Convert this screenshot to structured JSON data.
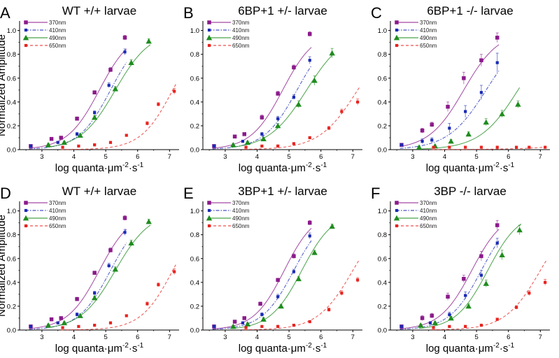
{
  "figure": {
    "axis_labels": {
      "y": "Normalized Amplitude",
      "x_prefix": "log quanta·μm",
      "x_exp1": "-2",
      "x_mid": "·s",
      "x_exp2": "-1"
    }
  },
  "chart_data": [
    {
      "type": "scatter",
      "letter": "A",
      "title": "WT +/+ larvae",
      "xlim": [
        2.3,
        7.3
      ],
      "ylim": [
        0,
        1.08
      ],
      "xticks": [
        3,
        4,
        5,
        6,
        7
      ],
      "yticks": [
        0.0,
        0.2,
        0.4,
        0.6,
        0.8,
        1.0
      ],
      "grid": false,
      "legend": "top-left",
      "series": [
        {
          "name": "370nm",
          "color": "#8b1a8b",
          "marker": "square",
          "line": "solid",
          "x": [
            2.65,
            3.3,
            3.6,
            4.1,
            4.65,
            5.15,
            5.6
          ],
          "y": [
            0.03,
            0.09,
            0.1,
            0.26,
            0.48,
            0.67,
            0.94
          ],
          "err": [
            0.01,
            0.01,
            0.01,
            0.015,
            0.015,
            0.02,
            0.02
          ],
          "fit_mid": 4.8,
          "fit_slope": 0.5
        },
        {
          "name": "410nm",
          "color": "#1a2ab5",
          "marker": "square-small",
          "line": "dashdot",
          "x": [
            2.65,
            3.5,
            4.1,
            4.65,
            5.1,
            5.6
          ],
          "y": [
            0.03,
            0.06,
            0.13,
            0.31,
            0.54,
            0.82
          ],
          "err": [
            0.01,
            0.01,
            0.015,
            0.015,
            0.02,
            0.025
          ],
          "fit_mid": 5.15,
          "fit_slope": 0.5
        },
        {
          "name": "490nm",
          "color": "#1e8c1e",
          "marker": "triangle",
          "line": "solid",
          "x": [
            3.2,
            3.7,
            4.2,
            4.65,
            5.3,
            5.8,
            6.35
          ],
          "y": [
            0.04,
            0.06,
            0.12,
            0.27,
            0.51,
            0.73,
            0.91
          ],
          "err": [
            0.01,
            0.01,
            0.015,
            0.015,
            0.02,
            0.025,
            0.02
          ],
          "fit_mid": 5.3,
          "fit_slope": 0.55
        },
        {
          "name": "650nm",
          "color": "#e8231f",
          "marker": "square-small",
          "line": "dashed",
          "x": [
            3.65,
            4.15,
            4.65,
            5.15,
            5.65,
            6.3,
            6.65,
            7.15
          ],
          "y": [
            0.02,
            0.03,
            0.04,
            0.06,
            0.12,
            0.22,
            0.38,
            0.49
          ],
          "err": [
            0.005,
            0.005,
            0.01,
            0.01,
            0.01,
            0.015,
            0.015,
            0.025
          ],
          "fit_mid": 7.1,
          "fit_slope": 0.5
        }
      ]
    },
    {
      "type": "scatter",
      "letter": "B",
      "title": "6BP+1 +/- larvae",
      "xlim": [
        2.3,
        7.3
      ],
      "ylim": [
        0,
        1.08
      ],
      "xticks": [
        3,
        4,
        5,
        6,
        7
      ],
      "yticks": [
        0.0,
        0.2,
        0.4,
        0.6,
        0.8,
        1.0
      ],
      "grid": false,
      "legend": "top-left",
      "series": [
        {
          "name": "370nm",
          "color": "#8b1a8b",
          "marker": "square",
          "line": "solid",
          "x": [
            2.65,
            3.3,
            3.6,
            4.15,
            4.65,
            5.15,
            5.65
          ],
          "y": [
            0.03,
            0.11,
            0.13,
            0.27,
            0.47,
            0.69,
            0.97
          ],
          "err": [
            0.01,
            0.01,
            0.01,
            0.02,
            0.02,
            0.02,
            0.02
          ],
          "fit_mid": 4.8,
          "fit_slope": 0.5
        },
        {
          "name": "410nm",
          "color": "#1a2ab5",
          "marker": "square-small",
          "line": "dashdot",
          "x": [
            2.65,
            3.55,
            4.15,
            4.65,
            5.15,
            5.65
          ],
          "y": [
            0.03,
            0.07,
            0.13,
            0.26,
            0.44,
            0.75
          ],
          "err": [
            0.01,
            0.01,
            0.015,
            0.02,
            0.02,
            0.03
          ],
          "fit_mid": 5.25,
          "fit_slope": 0.52
        },
        {
          "name": "490nm",
          "color": "#1e8c1e",
          "marker": "triangle",
          "line": "solid",
          "x": [
            3.25,
            3.7,
            4.2,
            4.65,
            5.3,
            5.8,
            6.35
          ],
          "y": [
            0.04,
            0.06,
            0.09,
            0.2,
            0.38,
            0.58,
            0.81
          ],
          "err": [
            0.01,
            0.01,
            0.015,
            0.02,
            0.03,
            0.04,
            0.04
          ],
          "fit_mid": 5.55,
          "fit_slope": 0.6
        },
        {
          "name": "650nm",
          "color": "#e8231f",
          "marker": "square-small",
          "line": "dashed",
          "x": [
            3.65,
            4.15,
            4.65,
            5.15,
            5.65,
            6.25,
            6.65,
            7.15
          ],
          "y": [
            0.02,
            0.03,
            0.03,
            0.05,
            0.1,
            0.18,
            0.32,
            0.4
          ],
          "err": [
            0.005,
            0.005,
            0.01,
            0.01,
            0.01,
            0.015,
            0.02,
            0.025
          ],
          "fit_mid": 7.15,
          "fit_slope": 0.6
        }
      ]
    },
    {
      "type": "scatter",
      "letter": "C",
      "title": "6BP+1 -/- larvae",
      "xlim": [
        2.3,
        7.3
      ],
      "ylim": [
        0,
        1.08
      ],
      "xticks": [
        3,
        4,
        5,
        6,
        7
      ],
      "yticks": [
        0.0,
        0.2,
        0.4,
        0.6,
        0.8,
        1.0
      ],
      "grid": false,
      "legend": "top-left",
      "series": [
        {
          "name": "370nm",
          "color": "#8b1a8b",
          "marker": "square",
          "line": "solid",
          "x": [
            2.65,
            3.3,
            3.6,
            4.1,
            4.6,
            5.15,
            5.65
          ],
          "y": [
            0.04,
            0.16,
            0.21,
            0.36,
            0.6,
            0.75,
            0.94
          ],
          "err": [
            0.01,
            0.02,
            0.02,
            0.04,
            0.05,
            0.05,
            0.04
          ],
          "fit_mid": 4.6,
          "fit_slope": 0.55
        },
        {
          "name": "410nm",
          "color": "#1a2ab5",
          "marker": "square-small",
          "line": "dashdot",
          "x": [
            2.65,
            3.3,
            3.6,
            4.15,
            4.65,
            5.15,
            5.65
          ],
          "y": [
            0.04,
            0.07,
            0.08,
            0.18,
            0.32,
            0.48,
            0.73
          ],
          "err": [
            0.01,
            0.02,
            0.02,
            0.04,
            0.05,
            0.06,
            0.08
          ],
          "fit_mid": 5.3,
          "fit_slope": 0.6
        },
        {
          "name": "490nm",
          "color": "#1e8c1e",
          "marker": "triangle",
          "line": "solid",
          "x": [
            3.2,
            3.7,
            4.2,
            4.75,
            5.3,
            5.8,
            6.3
          ],
          "y": [
            0.02,
            0.03,
            0.07,
            0.13,
            0.23,
            0.3,
            0.38
          ],
          "err": [
            0.01,
            0.01,
            0.015,
            0.02,
            0.03,
            0.03,
            0.03
          ],
          "fit_mid": 6.3,
          "fit_slope": 0.6
        },
        {
          "name": "650nm",
          "color": "#e8231f",
          "marker": "square-small",
          "line": "dashed",
          "x": [
            3.65,
            4.15,
            4.65,
            5.15,
            5.65,
            6.25,
            6.65,
            7.15
          ],
          "y": [
            0.02,
            0.02,
            0.02,
            0.02,
            0.02,
            0.02,
            0.02,
            0.02
          ],
          "err": [
            0.005,
            0.005,
            0.005,
            0.005,
            0.005,
            0.005,
            0.005,
            0.005
          ],
          "fit_mid": 11.0,
          "fit_slope": 1.0
        }
      ]
    },
    {
      "type": "scatter",
      "letter": "D",
      "title": "WT +/+ larvae",
      "xlim": [
        2.3,
        7.3
      ],
      "ylim": [
        0,
        1.08
      ],
      "xticks": [
        3,
        4,
        5,
        6,
        7
      ],
      "yticks": [
        0.0,
        0.2,
        0.4,
        0.6,
        0.8,
        1.0
      ],
      "grid": false,
      "legend": "top-left",
      "series": [
        {
          "name": "370nm",
          "color": "#8b1a8b",
          "marker": "square",
          "line": "solid",
          "x": [
            2.65,
            3.3,
            3.6,
            4.1,
            4.65,
            5.15,
            5.6
          ],
          "y": [
            0.03,
            0.09,
            0.1,
            0.26,
            0.48,
            0.67,
            0.94
          ],
          "err": [
            0.01,
            0.01,
            0.01,
            0.015,
            0.015,
            0.02,
            0.02
          ],
          "fit_mid": 4.8,
          "fit_slope": 0.5
        },
        {
          "name": "410nm",
          "color": "#1a2ab5",
          "marker": "square-small",
          "line": "dashdot",
          "x": [
            2.65,
            3.5,
            4.1,
            4.65,
            5.1,
            5.6
          ],
          "y": [
            0.03,
            0.06,
            0.13,
            0.31,
            0.54,
            0.82
          ],
          "err": [
            0.01,
            0.01,
            0.015,
            0.015,
            0.02,
            0.025
          ],
          "fit_mid": 5.15,
          "fit_slope": 0.5
        },
        {
          "name": "490nm",
          "color": "#1e8c1e",
          "marker": "triangle",
          "line": "solid",
          "x": [
            3.2,
            3.7,
            4.2,
            4.65,
            5.3,
            5.8,
            6.35
          ],
          "y": [
            0.04,
            0.06,
            0.12,
            0.27,
            0.51,
            0.73,
            0.91
          ],
          "err": [
            0.01,
            0.01,
            0.015,
            0.015,
            0.02,
            0.025,
            0.02
          ],
          "fit_mid": 5.3,
          "fit_slope": 0.55
        },
        {
          "name": "650nm",
          "color": "#e8231f",
          "marker": "square-small",
          "line": "dashed",
          "x": [
            3.65,
            4.15,
            4.65,
            5.15,
            5.65,
            6.3,
            6.65,
            7.15
          ],
          "y": [
            0.02,
            0.03,
            0.04,
            0.06,
            0.12,
            0.22,
            0.38,
            0.49
          ],
          "err": [
            0.005,
            0.005,
            0.01,
            0.01,
            0.01,
            0.015,
            0.015,
            0.025
          ],
          "fit_mid": 7.1,
          "fit_slope": 0.5
        }
      ]
    },
    {
      "type": "scatter",
      "letter": "E",
      "title": "3BP+1 +/- larvae",
      "xlim": [
        2.3,
        7.3
      ],
      "ylim": [
        0,
        1.08
      ],
      "xticks": [
        3,
        4,
        5,
        6,
        7
      ],
      "yticks": [
        0.0,
        0.2,
        0.4,
        0.6,
        0.8,
        1.0
      ],
      "grid": false,
      "legend": "top-left",
      "series": [
        {
          "name": "370nm",
          "color": "#8b1a8b",
          "marker": "square",
          "line": "solid",
          "x": [
            2.65,
            3.3,
            3.6,
            4.1,
            4.65,
            5.15,
            5.65
          ],
          "y": [
            0.03,
            0.07,
            0.1,
            0.22,
            0.42,
            0.62,
            0.9
          ],
          "err": [
            0.01,
            0.01,
            0.01,
            0.015,
            0.015,
            0.02,
            0.02
          ],
          "fit_mid": 4.85,
          "fit_slope": 0.48
        },
        {
          "name": "410nm",
          "color": "#1a2ab5",
          "marker": "square-small",
          "line": "dashdot",
          "x": [
            2.65,
            3.55,
            4.15,
            4.65,
            5.15,
            5.65
          ],
          "y": [
            0.03,
            0.06,
            0.13,
            0.28,
            0.49,
            0.79
          ],
          "err": [
            0.01,
            0.01,
            0.015,
            0.02,
            0.02,
            0.025
          ],
          "fit_mid": 5.15,
          "fit_slope": 0.5
        },
        {
          "name": "490nm",
          "color": "#1e8c1e",
          "marker": "triangle",
          "line": "solid",
          "x": [
            3.25,
            3.7,
            4.2,
            4.75,
            5.3,
            5.8,
            6.35
          ],
          "y": [
            0.03,
            0.05,
            0.09,
            0.2,
            0.43,
            0.65,
            0.87
          ],
          "err": [
            0.01,
            0.01,
            0.015,
            0.015,
            0.02,
            0.02,
            0.02
          ],
          "fit_mid": 5.4,
          "fit_slope": 0.5
        },
        {
          "name": "650nm",
          "color": "#e8231f",
          "marker": "square-small",
          "line": "dashed",
          "x": [
            3.65,
            4.15,
            4.65,
            5.15,
            5.65,
            6.25,
            6.65,
            7.15
          ],
          "y": [
            0.02,
            0.03,
            0.03,
            0.04,
            0.07,
            0.17,
            0.31,
            0.42
          ],
          "err": [
            0.005,
            0.005,
            0.01,
            0.01,
            0.01,
            0.015,
            0.02,
            0.02
          ],
          "fit_mid": 7.0,
          "fit_slope": 0.55
        }
      ]
    },
    {
      "type": "scatter",
      "letter": "F",
      "title": "3BP -/- larvae",
      "xlim": [
        2.3,
        7.3
      ],
      "ylim": [
        0,
        1.08
      ],
      "xticks": [
        3,
        4,
        5,
        6,
        7
      ],
      "yticks": [
        0.0,
        0.2,
        0.4,
        0.6,
        0.8,
        1.0
      ],
      "grid": false,
      "legend": "top-left",
      "series": [
        {
          "name": "370nm",
          "color": "#8b1a8b",
          "marker": "square",
          "line": "solid",
          "x": [
            2.65,
            3.3,
            3.6,
            4.1,
            4.6,
            5.15,
            5.65
          ],
          "y": [
            0.03,
            0.1,
            0.12,
            0.28,
            0.43,
            0.62,
            0.88
          ],
          "err": [
            0.01,
            0.02,
            0.02,
            0.03,
            0.03,
            0.04,
            0.04
          ],
          "fit_mid": 4.85,
          "fit_slope": 0.5
        },
        {
          "name": "410nm",
          "color": "#1a2ab5",
          "marker": "square-small",
          "line": "dashdot",
          "x": [
            2.65,
            3.55,
            4.15,
            4.65,
            5.15,
            5.65
          ],
          "y": [
            0.03,
            0.06,
            0.13,
            0.29,
            0.46,
            0.73
          ],
          "err": [
            0.01,
            0.01,
            0.02,
            0.03,
            0.04,
            0.04
          ],
          "fit_mid": 5.15,
          "fit_slope": 0.5
        },
        {
          "name": "490nm",
          "color": "#1e8c1e",
          "marker": "triangle",
          "line": "solid",
          "x": [
            3.25,
            3.7,
            4.2,
            4.75,
            5.3,
            5.8,
            6.35
          ],
          "y": [
            0.04,
            0.06,
            0.1,
            0.2,
            0.39,
            0.63,
            0.84
          ],
          "err": [
            0.01,
            0.01,
            0.015,
            0.02,
            0.03,
            0.04,
            0.04
          ],
          "fit_mid": 5.35,
          "fit_slope": 0.5
        },
        {
          "name": "650nm",
          "color": "#e8231f",
          "marker": "square-small",
          "line": "dashed",
          "x": [
            3.65,
            4.15,
            4.65,
            5.15,
            5.65,
            6.25,
            6.65,
            7.15
          ],
          "y": [
            0.02,
            0.03,
            0.03,
            0.04,
            0.09,
            0.19,
            0.31,
            0.4
          ],
          "err": [
            0.005,
            0.005,
            0.01,
            0.01,
            0.01,
            0.015,
            0.02,
            0.025
          ],
          "fit_mid": 7.0,
          "fit_slope": 0.55
        }
      ]
    }
  ]
}
